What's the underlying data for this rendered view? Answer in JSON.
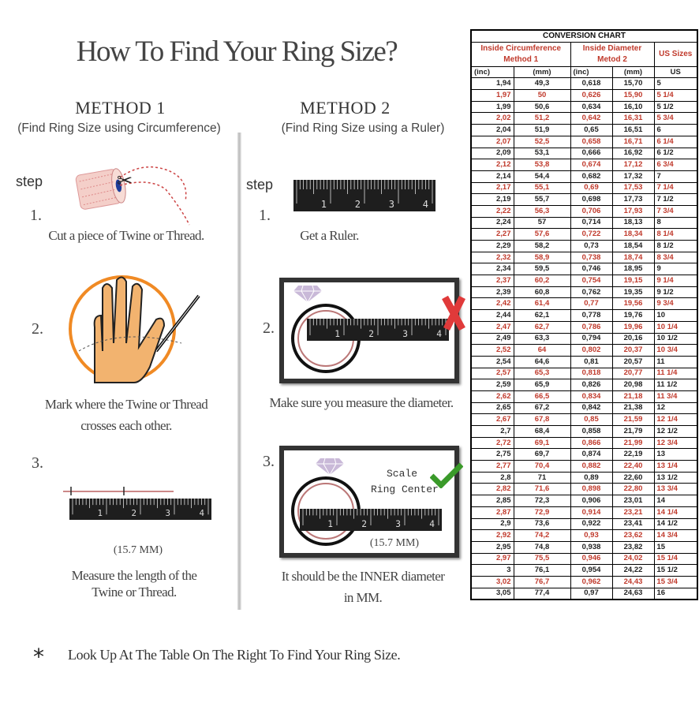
{
  "title": "How To Find Your Ring Size?",
  "method1": {
    "heading": "METHOD 1",
    "subtitle": "(Find Ring Size using Circumference)",
    "step_label": "step",
    "steps": [
      {
        "number": "1.",
        "caption": [
          "Cut a piece of Twine or Thread."
        ]
      },
      {
        "number": "2.",
        "caption": [
          "Mark where the Twine or Thread",
          "crosses each other."
        ]
      },
      {
        "number": "3.",
        "measure": "(15.7 MM)",
        "caption": [
          "Measure the length of the",
          "Twine or Thread."
        ]
      }
    ]
  },
  "method2": {
    "heading": "METHOD 2",
    "subtitle": "(Find Ring Size using a Ruler)",
    "step_label": "step",
    "steps": [
      {
        "number": "1.",
        "caption": [
          "Get a Ruler."
        ]
      },
      {
        "number": "2.",
        "caption": [
          "Make sure you measure the diameter."
        ]
      },
      {
        "number": "3.",
        "scale_label": "Scale",
        "center_label": "Ring Center",
        "measure": "(15.7 MM)",
        "caption": [
          "It should be the INNER diameter",
          "in MM."
        ]
      }
    ]
  },
  "ruler_numbers": [
    "1",
    "2",
    "3",
    "4"
  ],
  "footer": {
    "star": "*",
    "text": "Look Up At The Table On The Right To Find Your Ring Size."
  },
  "icons": {
    "wrong": "red-x-icon",
    "right": "green-check-icon",
    "diamond": "diamond-icon"
  },
  "colors": {
    "accent_red": "#c0392b",
    "hand_circle": "#f08a24",
    "check": "#3a9a2a",
    "cross": "#e03a3a"
  },
  "table": {
    "title": "CONVERSION CHART",
    "group1": [
      "Inside Circumference",
      "Method 1"
    ],
    "group2": [
      "Inside Diameter",
      "Metod 2"
    ],
    "group3": "US Sizes",
    "units": [
      "(inc)",
      "(mm)",
      "(inc)",
      "(mm)",
      "US"
    ],
    "rows": [
      [
        "1,94",
        "49,3",
        "0,618",
        "15,70",
        "5"
      ],
      [
        "1,97",
        "50",
        "0,626",
        "15,90",
        "5 1/4"
      ],
      [
        "1,99",
        "50,6",
        "0,634",
        "16,10",
        "5 1/2"
      ],
      [
        "2,02",
        "51,2",
        "0,642",
        "16,31",
        "5 3/4"
      ],
      [
        "2,04",
        "51,9",
        "0,65",
        "16,51",
        "6"
      ],
      [
        "2,07",
        "52,5",
        "0,658",
        "16,71",
        "6 1/4"
      ],
      [
        "2,09",
        "53,1",
        "0,666",
        "16,92",
        "6 1/2"
      ],
      [
        "2,12",
        "53,8",
        "0,674",
        "17,12",
        "6 3/4"
      ],
      [
        "2,14",
        "54,4",
        "0,682",
        "17,32",
        "7"
      ],
      [
        "2,17",
        "55,1",
        "0,69",
        "17,53",
        "7 1/4"
      ],
      [
        "2,19",
        "55,7",
        "0,698",
        "17,73",
        "7 1/2"
      ],
      [
        "2,22",
        "56,3",
        "0,706",
        "17,93",
        "7 3/4"
      ],
      [
        "2,24",
        "57",
        "0,714",
        "18,13",
        "8"
      ],
      [
        "2,27",
        "57,6",
        "0,722",
        "18,34",
        "8 1/4"
      ],
      [
        "2,29",
        "58,2",
        "0,73",
        "18,54",
        "8 1/2"
      ],
      [
        "2,32",
        "58,9",
        "0,738",
        "18,74",
        "8 3/4"
      ],
      [
        "2,34",
        "59,5",
        "0,746",
        "18,95",
        "9"
      ],
      [
        "2,37",
        "60,2",
        "0,754",
        "19,15",
        "9 1/4"
      ],
      [
        "2,39",
        "60,8",
        "0,762",
        "19,35",
        "9 1/2"
      ],
      [
        "2,42",
        "61,4",
        "0,77",
        "19,56",
        "9 3/4"
      ],
      [
        "2,44",
        "62,1",
        "0,778",
        "19,76",
        "10"
      ],
      [
        "2,47",
        "62,7",
        "0,786",
        "19,96",
        "10 1/4"
      ],
      [
        "2,49",
        "63,3",
        "0,794",
        "20,16",
        "10 1/2"
      ],
      [
        "2,52",
        "64",
        "0,802",
        "20,37",
        "10 3/4"
      ],
      [
        "2,54",
        "64,6",
        "0,81",
        "20,57",
        "11"
      ],
      [
        "2,57",
        "65,3",
        "0,818",
        "20,77",
        "11 1/4"
      ],
      [
        "2,59",
        "65,9",
        "0,826",
        "20,98",
        "11 1/2"
      ],
      [
        "2,62",
        "66,5",
        "0,834",
        "21,18",
        "11 3/4"
      ],
      [
        "2,65",
        "67,2",
        "0,842",
        "21,38",
        "12"
      ],
      [
        "2,67",
        "67,8",
        "0,85",
        "21,59",
        "12 1/4"
      ],
      [
        "2,7",
        "68,4",
        "0,858",
        "21,79",
        "12 1/2"
      ],
      [
        "2,72",
        "69,1",
        "0,866",
        "21,99",
        "12 3/4"
      ],
      [
        "2,75",
        "69,7",
        "0,874",
        "22,19",
        "13"
      ],
      [
        "2,77",
        "70,4",
        "0,882",
        "22,40",
        "13 1/4"
      ],
      [
        "2,8",
        "71",
        "0,89",
        "22,60",
        "13 1/2"
      ],
      [
        "2,82",
        "71,6",
        "0,898",
        "22,80",
        "13 3/4"
      ],
      [
        "2,85",
        "72,3",
        "0,906",
        "23,01",
        "14"
      ],
      [
        "2,87",
        "72,9",
        "0,914",
        "23,21",
        "14 1/4"
      ],
      [
        "2,9",
        "73,6",
        "0,922",
        "23,41",
        "14 1/2"
      ],
      [
        "2,92",
        "74,2",
        "0,93",
        "23,62",
        "14 3/4"
      ],
      [
        "2,95",
        "74,8",
        "0,938",
        "23,82",
        "15"
      ],
      [
        "2,97",
        "75,5",
        "0,946",
        "24,02",
        "15 1/4"
      ],
      [
        "3",
        "76,1",
        "0,954",
        "24,22",
        "15 1/2"
      ],
      [
        "3,02",
        "76,7",
        "0,962",
        "24,43",
        "15 3/4"
      ],
      [
        "3,05",
        "77,4",
        "0,97",
        "24,63",
        "16"
      ]
    ]
  }
}
